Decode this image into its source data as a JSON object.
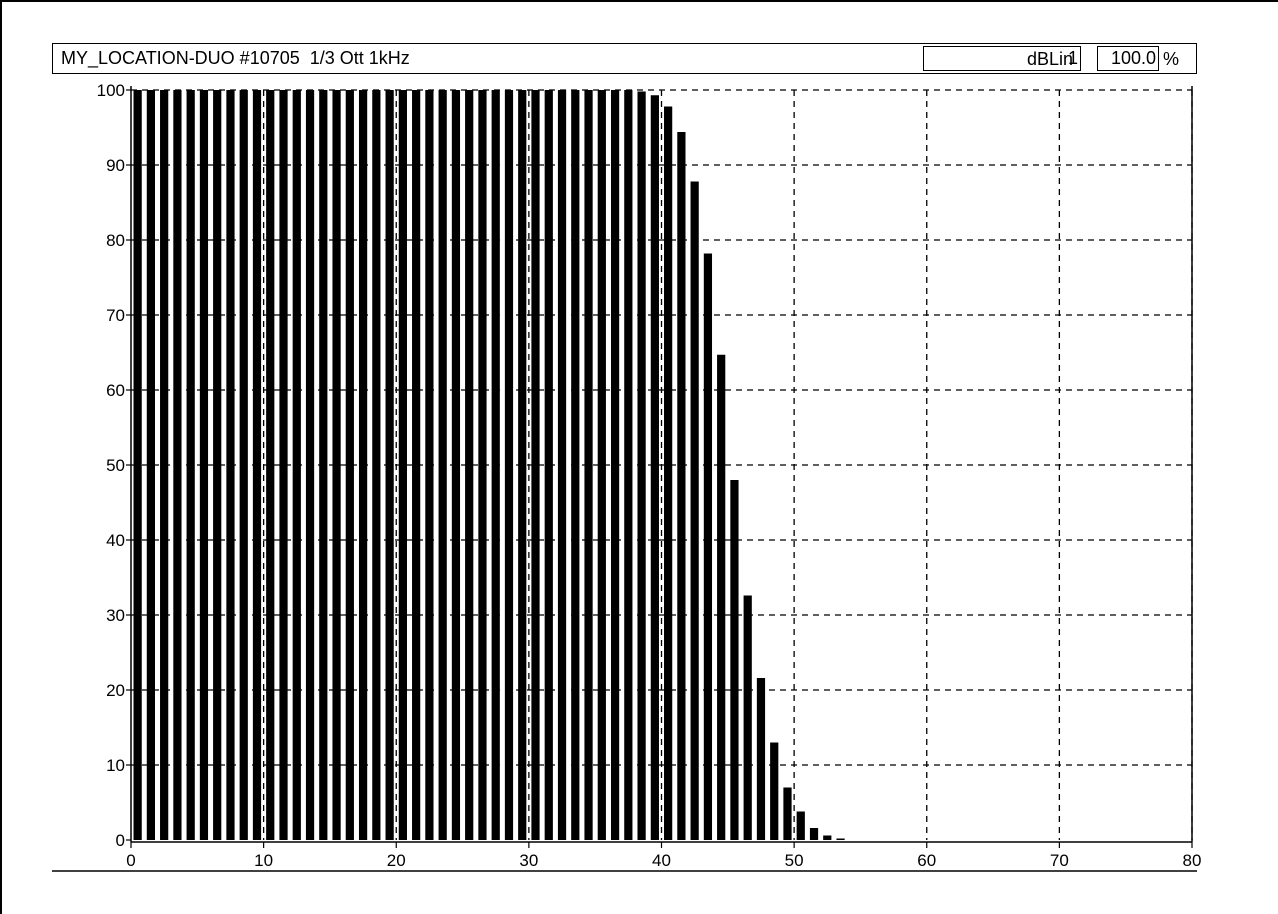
{
  "header": {
    "title": "MY_LOCATION-DUO #10705  1/3 Ott 1kHz",
    "resolution": "1",
    "scale": "dBLin",
    "percent": "100.0",
    "percent_sign": "%"
  },
  "chart_data": {
    "type": "bar",
    "title": "MY_LOCATION-DUO #10705  1/3 Ott 1kHz",
    "xlabel": "",
    "ylabel": "",
    "xlim": [
      0,
      80
    ],
    "ylim": [
      0,
      100
    ],
    "xticks": [
      0,
      10,
      20,
      30,
      40,
      50,
      60,
      70,
      80
    ],
    "yticks": [
      0,
      10,
      20,
      30,
      40,
      50,
      60,
      70,
      80,
      90,
      100
    ],
    "grid": true,
    "categories": [
      0,
      1,
      2,
      3,
      4,
      5,
      6,
      7,
      8,
      9,
      10,
      11,
      12,
      13,
      14,
      15,
      16,
      17,
      18,
      19,
      20,
      21,
      22,
      23,
      24,
      25,
      26,
      27,
      28,
      29,
      30,
      31,
      32,
      33,
      34,
      35,
      36,
      37,
      38,
      39,
      40,
      41,
      42,
      43,
      44,
      45,
      46,
      47,
      48,
      49,
      50,
      51,
      52,
      53
    ],
    "values": [
      100,
      100,
      100,
      100,
      100,
      100,
      100,
      100,
      100,
      100,
      100,
      100,
      100,
      100,
      100,
      100,
      100,
      100,
      100,
      100,
      100,
      100,
      100,
      100,
      100,
      100,
      100,
      100,
      100,
      100,
      100,
      100,
      100,
      100,
      100,
      100,
      100,
      100,
      99.8,
      99.3,
      97.8,
      94.4,
      87.8,
      78.2,
      64.7,
      48.0,
      32.6,
      21.6,
      13.0,
      7.0,
      3.8,
      1.6,
      0.6,
      0.2
    ]
  }
}
